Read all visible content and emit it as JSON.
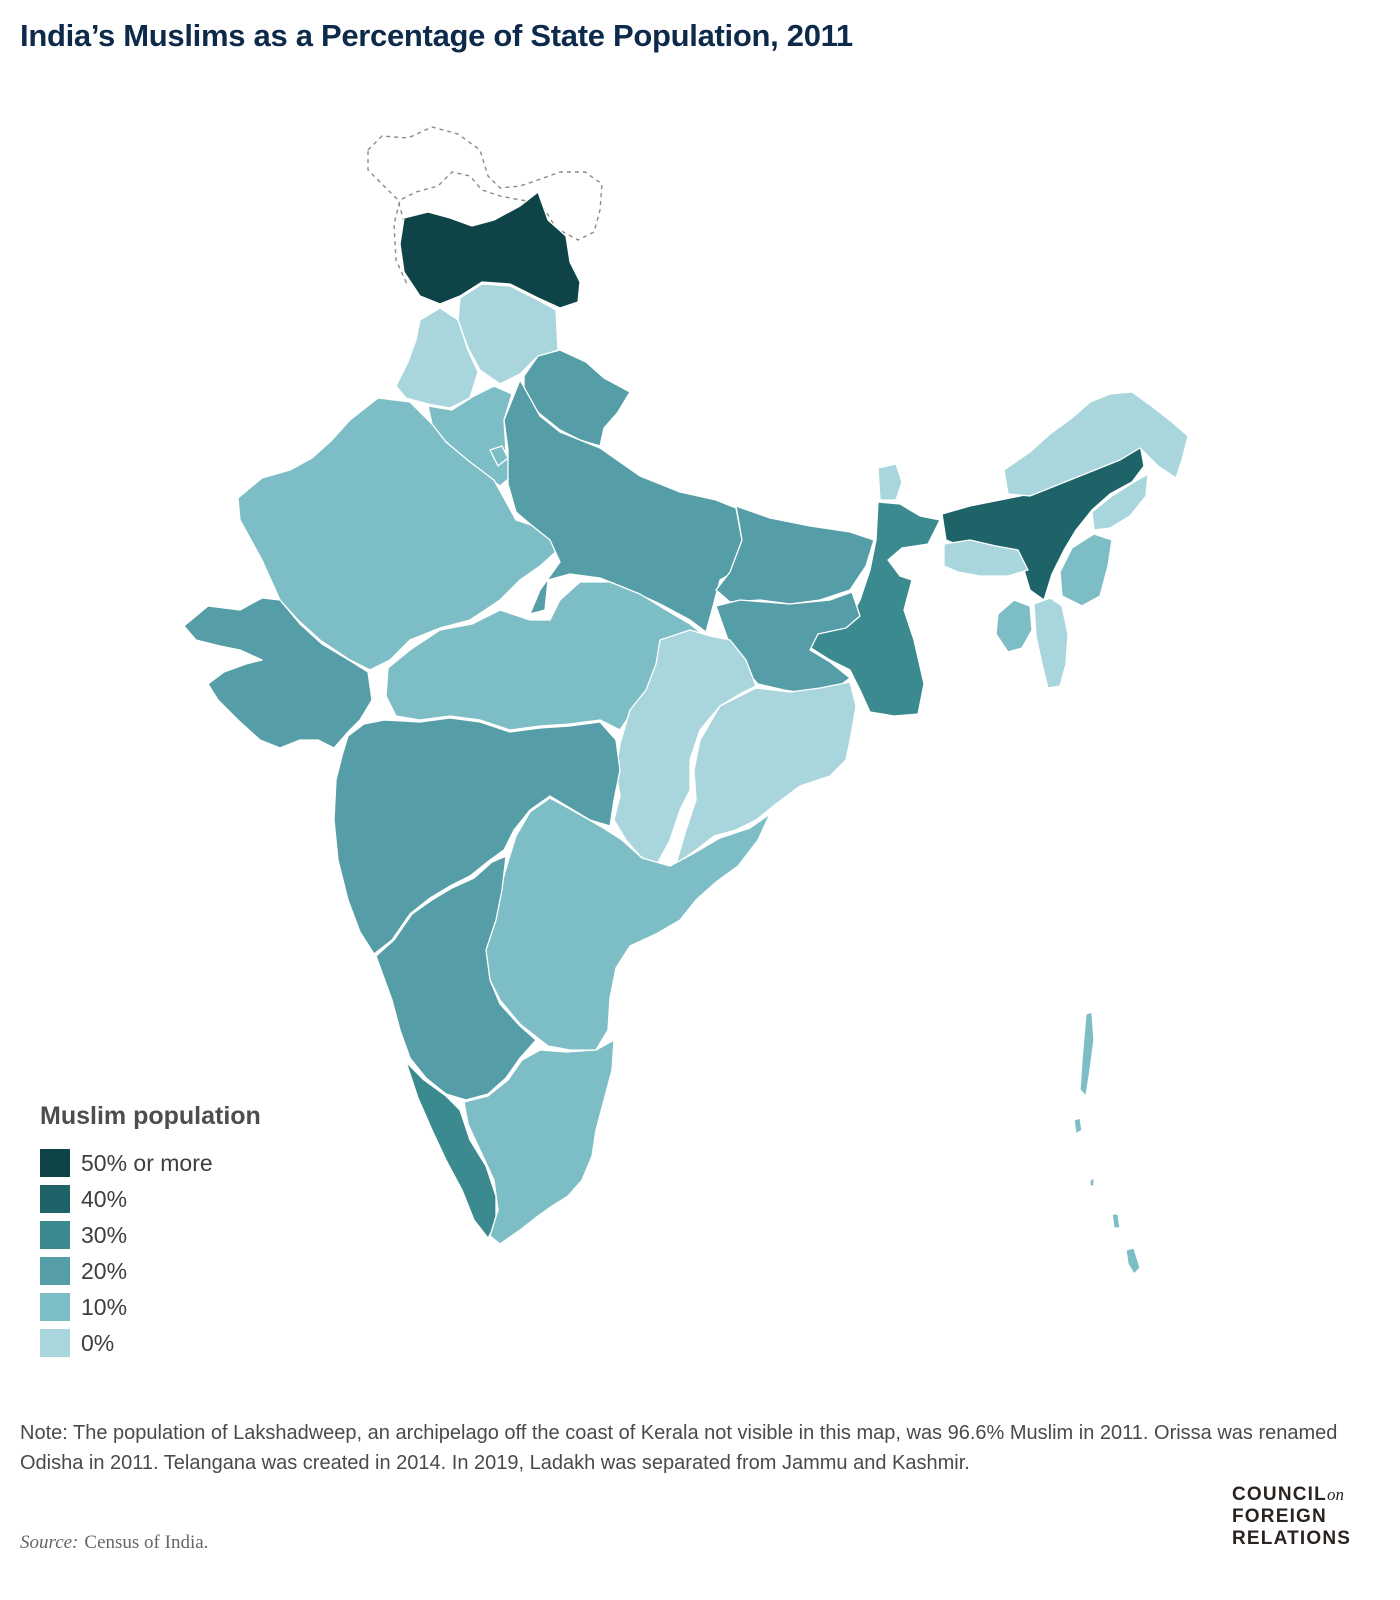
{
  "title": "India’s Muslims as a Percentage of State Population, 2011",
  "legend": {
    "title": "Muslim population",
    "items": [
      {
        "label": "50% or more",
        "color": "#0e4448"
      },
      {
        "label": "40%",
        "color": "#1d6368"
      },
      {
        "label": "30%",
        "color": "#3a8a8f"
      },
      {
        "label": "20%",
        "color": "#569ea7"
      },
      {
        "label": "10%",
        "color": "#7dbdc5"
      },
      {
        "label": "0%",
        "color": "#a8d6dc"
      }
    ]
  },
  "regions": [
    {
      "name": "Jammu and Kashmir",
      "class": "50% or more"
    },
    {
      "name": "Assam",
      "class": "40%"
    },
    {
      "name": "West Bengal",
      "class": "30%"
    },
    {
      "name": "Kerala",
      "class": "30%"
    },
    {
      "name": "Uttar Pradesh",
      "class": "20%"
    },
    {
      "name": "Bihar",
      "class": "20%"
    },
    {
      "name": "Jharkhand",
      "class": "20%"
    },
    {
      "name": "Uttarakhand",
      "class": "20%"
    },
    {
      "name": "Gujarat",
      "class": "20%"
    },
    {
      "name": "Maharashtra",
      "class": "20%"
    },
    {
      "name": "Karnataka",
      "class": "20%"
    },
    {
      "name": "Rajasthan",
      "class": "10%"
    },
    {
      "name": "Haryana",
      "class": "10%"
    },
    {
      "name": "Andhra Pradesh",
      "class": "10%"
    },
    {
      "name": "Madhya Pradesh",
      "class": "10%"
    },
    {
      "name": "Tamil Nadu",
      "class": "10%"
    },
    {
      "name": "Delhi",
      "class": "10%"
    },
    {
      "name": "Manipur",
      "class": "10%"
    },
    {
      "name": "Tripura",
      "class": "10%"
    },
    {
      "name": "Andaman and Nicobar Islands",
      "class": "10%"
    },
    {
      "name": "Punjab",
      "class": "0%"
    },
    {
      "name": "Himachal Pradesh",
      "class": "0%"
    },
    {
      "name": "Chhattisgarh",
      "class": "0%"
    },
    {
      "name": "Odisha",
      "class": "0%"
    },
    {
      "name": "Arunachal Pradesh",
      "class": "0%"
    },
    {
      "name": "Nagaland",
      "class": "0%"
    },
    {
      "name": "Meghalaya",
      "class": "0%"
    },
    {
      "name": "Mizoram",
      "class": "0%"
    },
    {
      "name": "Sikkim",
      "class": "0%"
    }
  ],
  "note": "Note: The population of Lakshadweep, an archipelago off the coast of Kerala not visible in this map, was 96.6% Muslim in 2011. Orissa was renamed Odisha in 2011. Telangana was created in 2014. In 2019, Ladakh was separated from Jammu and Kashmir.",
  "source": {
    "label": "Source:",
    "text": "Census of India."
  },
  "logo": {
    "line1": "COUNCIL",
    "on": "on",
    "line2": "FOREIGN",
    "line3": "RELATIONS"
  }
}
